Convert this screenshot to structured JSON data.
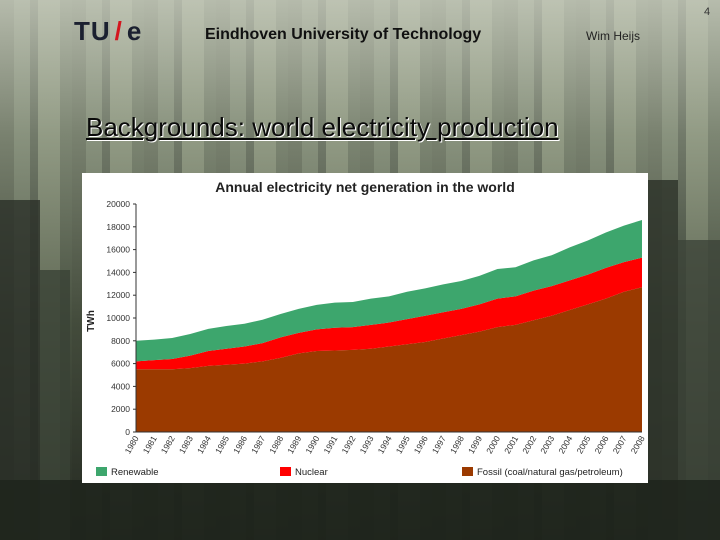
{
  "header": {
    "logo_left": "TU",
    "logo_slash": "/",
    "logo_right": "e",
    "university": "Eindhoven University of Technology",
    "author": "Wim Heijs",
    "slide_number": "4"
  },
  "slide": {
    "title": "Backgrounds: world electricity production"
  },
  "colors": {
    "renewable": "#3da66d",
    "nuclear": "#ff0000",
    "fossil": "#9b3a00",
    "logo_slash": "#d4161e"
  },
  "chart_data": {
    "type": "area",
    "stacked": true,
    "title": "Annual electricity net generation in the world",
    "ylabel": "TWh",
    "xlabel": "",
    "ylim": [
      0,
      20000
    ],
    "yticks": [
      0,
      2000,
      4000,
      6000,
      8000,
      10000,
      12000,
      14000,
      16000,
      18000,
      20000
    ],
    "x": [
      "1980",
      "1981",
      "1982",
      "1983",
      "1984",
      "1985",
      "1986",
      "1987",
      "1988",
      "1989",
      "1990",
      "1991",
      "1992",
      "1993",
      "1994",
      "1995",
      "1996",
      "1997",
      "1998",
      "1999",
      "2000",
      "2001",
      "2002",
      "2003",
      "2004",
      "2005",
      "2006",
      "2007",
      "2008"
    ],
    "series": [
      {
        "name": "Fossil (coal/natural gas/petroleum)",
        "color": "#9b3a00",
        "values": [
          5500,
          5500,
          5500,
          5600,
          5800,
          5900,
          6000,
          6200,
          6500,
          6900,
          7100,
          7150,
          7200,
          7300,
          7500,
          7700,
          7900,
          8200,
          8500,
          8800,
          9200,
          9400,
          9800,
          10200,
          10700,
          11200,
          11700,
          12300,
          12700
        ]
      },
      {
        "name": "Nuclear",
        "color": "#ff0000",
        "values": [
          700,
          800,
          900,
          1100,
          1300,
          1400,
          1500,
          1600,
          1800,
          1800,
          1900,
          2000,
          2000,
          2100,
          2100,
          2200,
          2300,
          2300,
          2300,
          2400,
          2500,
          2500,
          2600,
          2600,
          2600,
          2600,
          2700,
          2600,
          2600
        ]
      },
      {
        "name": "Renewable",
        "color": "#3da66d",
        "values": [
          1800,
          1800,
          1850,
          1900,
          1950,
          2000,
          2000,
          2050,
          2050,
          2100,
          2150,
          2200,
          2200,
          2300,
          2300,
          2400,
          2400,
          2450,
          2450,
          2500,
          2600,
          2550,
          2650,
          2700,
          2900,
          3000,
          3100,
          3200,
          3300
        ]
      }
    ],
    "legend_position": "bottom",
    "grid": false
  }
}
